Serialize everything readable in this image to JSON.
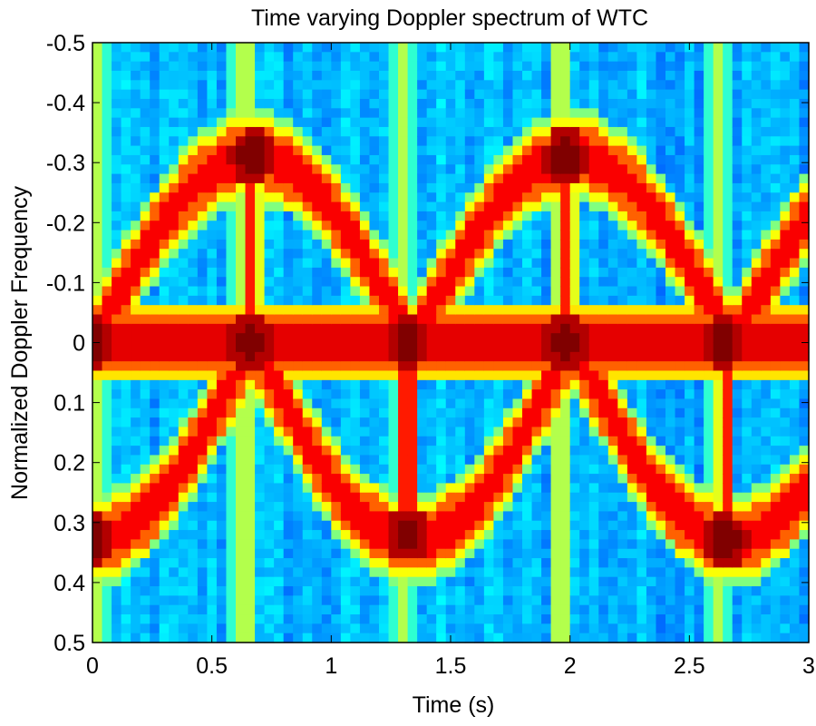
{
  "chart_data": {
    "type": "heatmap",
    "title": "Time varying Doppler spectrum of WTC",
    "xlabel": "Time (s)",
    "ylabel": "Normalized Doppler Frequency",
    "xlim": [
      0,
      3
    ],
    "ylim": [
      -0.5,
      0.5
    ],
    "y_axis_direction": "reversed",
    "xticks": [
      0,
      0.5,
      1,
      1.5,
      2,
      2.5,
      3
    ],
    "xtick_labels": [
      "0",
      "0.5",
      "1",
      "1.5",
      "2",
      "2.5",
      "3"
    ],
    "yticks": [
      -0.5,
      -0.4,
      -0.3,
      -0.2,
      -0.1,
      0,
      0.1,
      0.2,
      0.3,
      0.4,
      0.5
    ],
    "ytick_labels": [
      "-0.5",
      "-0.4",
      "-0.3",
      "-0.2",
      "-0.1",
      "0",
      "0.1",
      "0.2",
      "0.3",
      "0.4",
      "0.5"
    ],
    "grid": false,
    "colormap": "jet",
    "time_bins": 75,
    "freq_bins": 64,
    "components": {
      "zero_doppler_band": {
        "frequency": 0.0,
        "halfwidth": 0.03,
        "intensity": 1.0
      },
      "upper_arcs": {
        "peak_frequency": -0.31,
        "peak_times": [
          0.67,
          1.98
        ],
        "zero_crossing_times": [
          0.0,
          1.33,
          2.66
        ],
        "intensity": 0.92
      },
      "lower_arcs": {
        "peak_frequency": 0.33,
        "peak_times": [
          0.0,
          1.33,
          2.66
        ],
        "zero_crossing_times": [
          0.67,
          1.98
        ],
        "intensity": 0.92
      },
      "vertical_flash_lines": [
        {
          "time": 0.67,
          "from_frequency": -0.31,
          "to_frequency": 0.0
        },
        {
          "time": 1.32,
          "from_frequency": 0.0,
          "to_frequency": 0.32
        },
        {
          "time": 1.99,
          "from_frequency": -0.31,
          "to_frequency": 0.0
        },
        {
          "time": 2.65,
          "from_frequency": 0.0,
          "to_frequency": 0.33
        }
      ],
      "vertical_stripes_times": [
        0.02,
        0.63,
        1.3,
        1.96,
        2.62
      ],
      "peak_spots": [
        {
          "time": 0.67,
          "frequency": -0.31
        },
        {
          "time": 1.98,
          "frequency": -0.31
        },
        {
          "time": 0.0,
          "frequency": 0.33
        },
        {
          "time": 1.32,
          "frequency": 0.32
        },
        {
          "time": 2.65,
          "frequency": 0.33
        },
        {
          "time": 0.0,
          "frequency": 0.0
        },
        {
          "time": 0.66,
          "frequency": 0.0
        },
        {
          "time": 1.32,
          "frequency": 0.0
        },
        {
          "time": 1.98,
          "frequency": 0.0
        },
        {
          "time": 2.64,
          "frequency": 0.0
        }
      ],
      "background_level": 0.3
    }
  }
}
